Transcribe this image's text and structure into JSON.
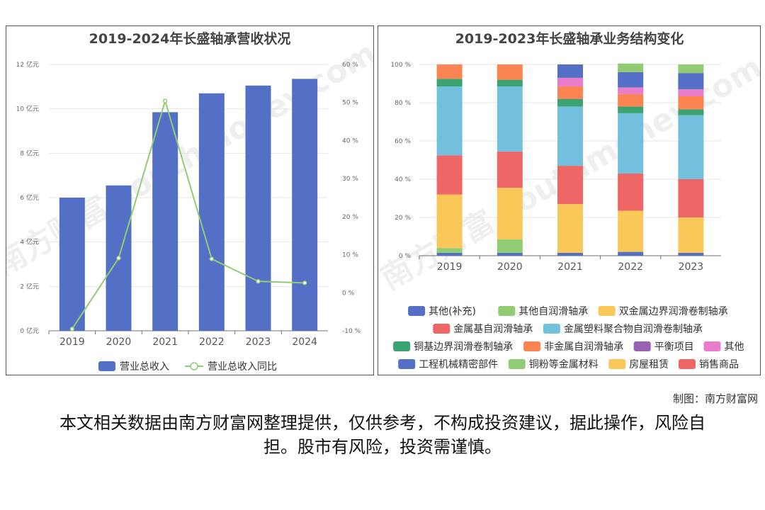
{
  "chart_data": [
    {
      "type": "bar",
      "title": "2019-2024年长盛轴承营收状况",
      "categories": [
        "2019",
        "2020",
        "2021",
        "2022",
        "2023",
        "2024"
      ],
      "series": [
        {
          "name": "营业总收入",
          "type": "bar",
          "axis": "left",
          "values": [
            6.0,
            6.55,
            9.85,
            10.7,
            11.05,
            11.35
          ]
        },
        {
          "name": "营业总收入同比",
          "type": "line",
          "axis": "right",
          "values": [
            -9.5,
            9.1,
            50.4,
            8.9,
            3.0,
            2.6
          ]
        }
      ],
      "y_left": {
        "min": 0,
        "max": 12,
        "ticks": [
          "0 亿元",
          "2 亿元",
          "4 亿元",
          "6 亿元",
          "8 亿元",
          "10 亿元",
          "12 亿元"
        ]
      },
      "y_right": {
        "min": -10,
        "max": 60,
        "ticks": [
          "-10 %",
          "0 %",
          "10 %",
          "20 %",
          "30 %",
          "40 %",
          "50 %",
          "60 %"
        ]
      },
      "legend_position": "bottom",
      "colors": {
        "bar": "#5470c6",
        "line": "#91cc75"
      }
    },
    {
      "type": "stacked_bar",
      "title": "2019-2023年长盛轴承业务结构变化",
      "categories": [
        "2019",
        "2020",
        "2021",
        "2022",
        "2023"
      ],
      "y_ticks": [
        "0 %",
        "20 %",
        "40 %",
        "60 %",
        "80 %",
        "100 %"
      ],
      "ylim": [
        0,
        100
      ],
      "series": [
        {
          "name": "其他(补充)",
          "color": "#5470c6",
          "values": [
            1.5,
            1.5,
            1.5,
            2,
            1.5
          ]
        },
        {
          "name": "其他自润滑轴承",
          "color": "#91cc75",
          "values": [
            2.5,
            7,
            0,
            0,
            0
          ]
        },
        {
          "name": "双金属边界润滑卷制轴承",
          "color": "#fac858",
          "values": [
            28,
            27,
            25.5,
            21.5,
            18.5
          ]
        },
        {
          "name": "金属基自润滑轴承",
          "color": "#ee6666",
          "values": [
            20.5,
            19,
            20,
            19.5,
            20
          ]
        },
        {
          "name": "金属塑料聚合物自润滑卷制轴承",
          "color": "#73c0de",
          "values": [
            36,
            34,
            31,
            31.5,
            33.5
          ]
        },
        {
          "name": "铜基边界润滑卷制轴承",
          "color": "#3ba272",
          "values": [
            4,
            3.5,
            4,
            3.5,
            3
          ]
        },
        {
          "name": "非金属自润滑轴承",
          "color": "#fc8452",
          "values": [
            7.5,
            8,
            6.5,
            6.5,
            7
          ]
        },
        {
          "name": "平衡项目",
          "color": "#9a60b4",
          "values": [
            0,
            0,
            0,
            0,
            0
          ]
        },
        {
          "name": "其他",
          "color": "#ea7ccc",
          "values": [
            0,
            0,
            4.5,
            3.5,
            3.5
          ]
        },
        {
          "name": "工程机械精密部件",
          "color": "#5470c6",
          "values": [
            0,
            0,
            7,
            8,
            8.5
          ]
        },
        {
          "name": "铜粉等金属材料",
          "color": "#91cc75",
          "values": [
            0,
            0,
            0,
            4.5,
            4.5
          ]
        },
        {
          "name": "房屋租赁",
          "color": "#fac858",
          "values": [
            0,
            0,
            0,
            0,
            0
          ]
        },
        {
          "name": "销售商品",
          "color": "#ee6666",
          "values": [
            0,
            0,
            0,
            0,
            0
          ]
        }
      ],
      "legend_position": "bottom"
    }
  ],
  "watermark": "南方财富 southmoney.com",
  "credit": "制图：南方财富网",
  "disclaimer": "本文相关数据由南方财富网整理提供，仅供参考，不构成投资建议，据此操作，风险自担。股市有风险，投资需谨慎。"
}
